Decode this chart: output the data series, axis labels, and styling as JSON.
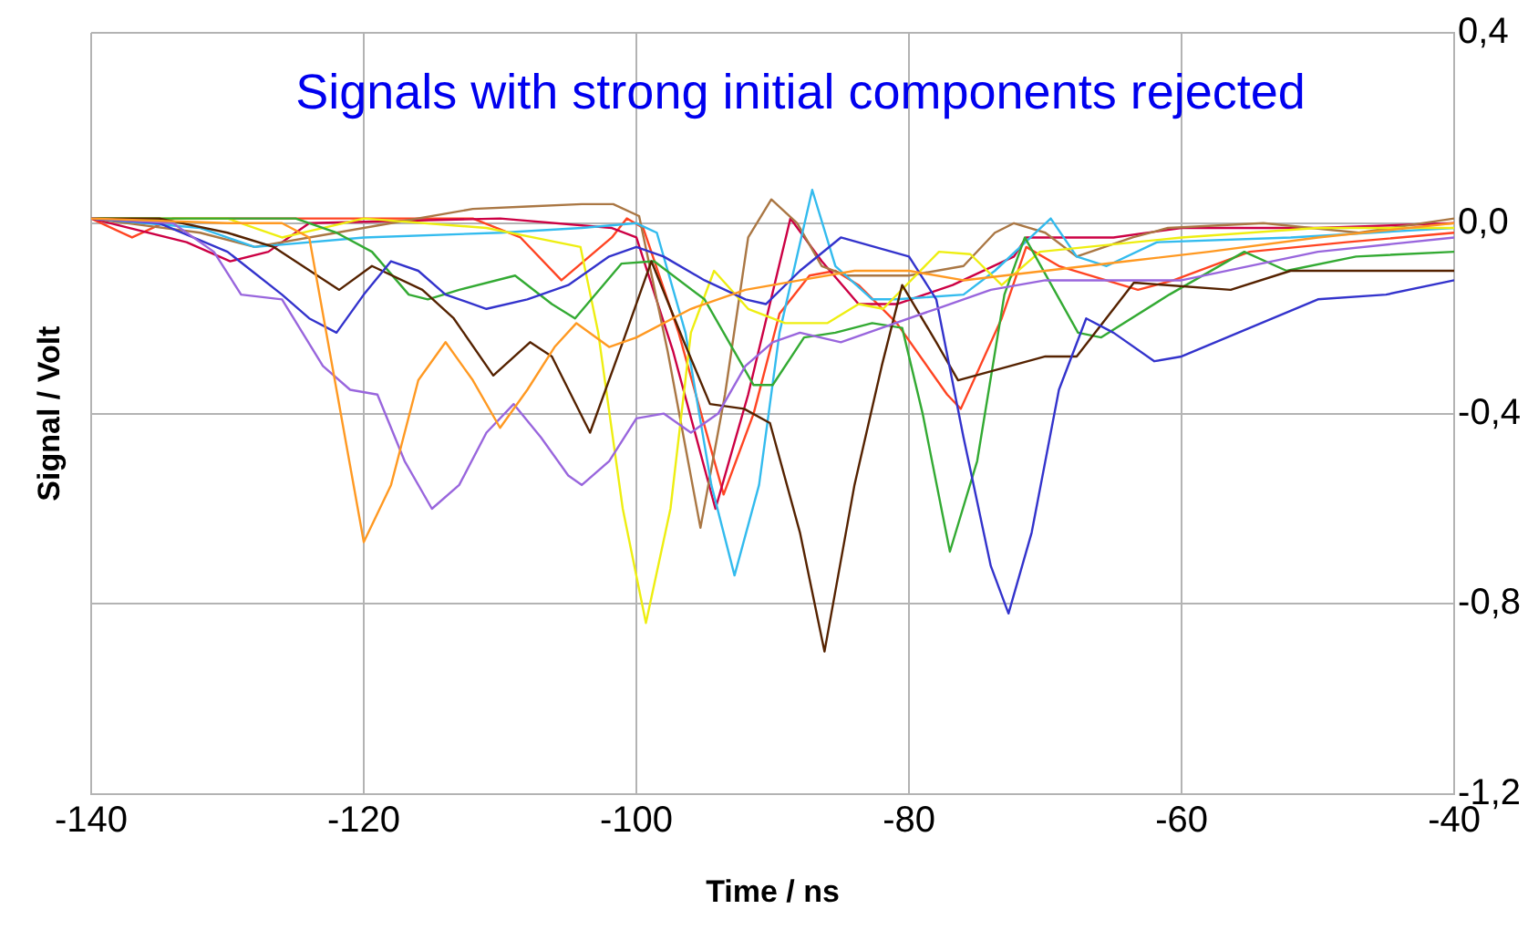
{
  "chart_data": {
    "type": "line",
    "title": "Signals with strong initial components rejected",
    "xlabel": "Time / ns",
    "ylabel": "Signal / Volt",
    "xlim": [
      -140,
      -40
    ],
    "xticks": [
      -140,
      -120,
      -100,
      -80,
      -60,
      -40
    ],
    "ylim": [
      -1.2,
      0.4
    ],
    "yticks": [
      {
        "value": 0.4,
        "label": "0,4"
      },
      {
        "value": 0,
        "label": "0,0"
      },
      {
        "value": -0.4,
        "label": "-0,4"
      },
      {
        "value": -0.8,
        "label": "-0,8"
      },
      {
        "value": -1.2,
        "label": "-1,2"
      }
    ],
    "grid": true,
    "legend": false,
    "marker": "none",
    "line_style": "solid",
    "series": [
      {
        "color": "#ff9922",
        "x": [
          -140,
          -130,
          -126,
          -124,
          -122,
          -120,
          -118,
          -116,
          -114,
          -112,
          -110,
          -108,
          -106,
          -104.4,
          -102,
          -100,
          -96,
          -92,
          -88,
          -84,
          -80,
          -76,
          -70,
          -64,
          -58,
          -50,
          -40
        ],
        "values": [
          0.01,
          0,
          0,
          -0.03,
          -0.35,
          -0.67,
          -0.55,
          -0.33,
          -0.25,
          -0.33,
          -0.43,
          -0.35,
          -0.26,
          -0.21,
          -0.26,
          -0.24,
          -0.18,
          -0.14,
          -0.12,
          -0.1,
          -0.1,
          -0.12,
          -0.1,
          -0.08,
          -0.06,
          -0.03,
          0
        ]
      },
      {
        "color": "#9966dd",
        "x": [
          -140,
          -134,
          -131,
          -129,
          -126,
          -123,
          -121,
          -119,
          -117,
          -115,
          -113,
          -111,
          -109,
          -107,
          -105,
          -104,
          -102,
          -100,
          -98,
          -96,
          -94,
          -92,
          -90,
          -88,
          -85,
          -82,
          -78,
          -74,
          -70,
          -60,
          -50,
          -40
        ],
        "values": [
          0.01,
          0,
          -0.06,
          -0.15,
          -0.16,
          -0.3,
          -0.35,
          -0.36,
          -0.5,
          -0.6,
          -0.55,
          -0.44,
          -0.38,
          -0.45,
          -0.53,
          -0.55,
          -0.5,
          -0.41,
          -0.4,
          -0.44,
          -0.4,
          -0.3,
          -0.25,
          -0.23,
          -0.25,
          -0.22,
          -0.18,
          -0.14,
          -0.12,
          -0.12,
          -0.06,
          -0.03
        ]
      },
      {
        "color": "#3333cc",
        "x": [
          -140,
          -135,
          -130,
          -126,
          -124,
          -122,
          -120,
          -118,
          -116,
          -114,
          -111,
          -108,
          -105,
          -102,
          -100,
          -98,
          -95,
          -92,
          -90.5,
          -88,
          -85,
          -80,
          -78,
          -76,
          -74,
          -72.7,
          -71,
          -69,
          -67,
          -65,
          -62,
          -60,
          -55,
          -50,
          -45,
          -40
        ],
        "values": [
          0.01,
          0,
          -0.06,
          -0.15,
          -0.2,
          -0.23,
          -0.15,
          -0.08,
          -0.1,
          -0.15,
          -0.18,
          -0.16,
          -0.13,
          -0.07,
          -0.05,
          -0.07,
          -0.12,
          -0.16,
          -0.17,
          -0.1,
          -0.03,
          -0.07,
          -0.16,
          -0.45,
          -0.72,
          -0.82,
          -0.65,
          -0.35,
          -0.2,
          -0.23,
          -0.29,
          -0.28,
          -0.22,
          -0.16,
          -0.15,
          -0.12
        ]
      },
      {
        "color": "#552200",
        "x": [
          -140,
          -135,
          -130,
          -126.6,
          -121.8,
          -119.4,
          -115.7,
          -113.4,
          -110.5,
          -107.8,
          -106.2,
          -103.4,
          -101,
          -98.9,
          -96.5,
          -94.6,
          -92.1,
          -90.2,
          -88,
          -86.2,
          -84,
          -82,
          -80.5,
          -78,
          -76.4,
          -70,
          -67.7,
          -63.5,
          -56.4,
          -52,
          -47,
          -40
        ],
        "values": [
          0.01,
          0.01,
          -0.02,
          -0.05,
          -0.14,
          -0.09,
          -0.14,
          -0.2,
          -0.32,
          -0.25,
          -0.28,
          -0.44,
          -0.25,
          -0.08,
          -0.25,
          -0.38,
          -0.39,
          -0.42,
          -0.65,
          -0.9,
          -0.55,
          -0.3,
          -0.13,
          -0.25,
          -0.33,
          -0.28,
          -0.28,
          -0.125,
          -0.14,
          -0.1,
          -0.1,
          -0.1
        ]
      },
      {
        "color": "#33aa33",
        "x": [
          -140,
          -130,
          -125,
          -122,
          -119.4,
          -116.7,
          -115.3,
          -113,
          -108.9,
          -106.2,
          -104.5,
          -101.1,
          -98.7,
          -95,
          -91.4,
          -90,
          -87.7,
          -85.4,
          -82.7,
          -80.5,
          -79,
          -77,
          -75,
          -73,
          -71.5,
          -67.6,
          -65.9,
          -60.9,
          -55.4,
          -52.3,
          -47.2,
          -40
        ],
        "values": [
          0.01,
          0.01,
          0.01,
          -0.02,
          -0.06,
          -0.15,
          -0.16,
          -0.14,
          -0.11,
          -0.17,
          -0.2,
          -0.085,
          -0.08,
          -0.16,
          -0.34,
          -0.34,
          -0.24,
          -0.23,
          -0.21,
          -0.22,
          -0.4,
          -0.69,
          -0.5,
          -0.15,
          -0.03,
          -0.23,
          -0.24,
          -0.15,
          -0.06,
          -0.1,
          -0.07,
          -0.06
        ]
      },
      {
        "color": "#eeee11",
        "x": [
          -140,
          -130,
          -126,
          -120,
          -111,
          -104.1,
          -102.8,
          -101,
          -99.3,
          -97.5,
          -96,
          -94.3,
          -91.8,
          -89.1,
          -86,
          -83.7,
          -81.9,
          -77.8,
          -75.5,
          -73.2,
          -70.4,
          -60,
          -50,
          -40
        ],
        "values": [
          0.01,
          0.01,
          -0.03,
          0.01,
          -0.01,
          -0.05,
          -0.23,
          -0.6,
          -0.84,
          -0.6,
          -0.23,
          -0.1,
          -0.18,
          -0.21,
          -0.21,
          -0.17,
          -0.18,
          -0.06,
          -0.065,
          -0.13,
          -0.06,
          -0.03,
          -0.01,
          -0.01
        ]
      },
      {
        "color": "#33bbee",
        "x": [
          -140,
          -132,
          -128,
          -120,
          -110,
          -104,
          -100,
          -98.5,
          -96.4,
          -94.5,
          -92.8,
          -91,
          -89.5,
          -87.1,
          -85.4,
          -82.7,
          -80.9,
          -76,
          -73.7,
          -69.6,
          -67.7,
          -65.5,
          -61.8,
          -52,
          -40
        ],
        "values": [
          0.01,
          -0.01,
          -0.05,
          -0.03,
          -0.02,
          -0.01,
          0,
          -0.02,
          -0.23,
          -0.55,
          -0.74,
          -0.55,
          -0.23,
          0.07,
          -0.09,
          -0.16,
          -0.16,
          -0.15,
          -0.1,
          0.01,
          -0.07,
          -0.09,
          -0.04,
          -0.03,
          -0.01
        ]
      },
      {
        "color": "#aa7744",
        "x": [
          -140,
          -132,
          -128,
          -122,
          -118,
          -112,
          -108,
          -104,
          -101.7,
          -99.8,
          -97.7,
          -95.3,
          -93.5,
          -91.8,
          -90.1,
          -88.2,
          -86.4,
          -84.6,
          -80,
          -76,
          -73.7,
          -72.3,
          -70,
          -67.7,
          -63.6,
          -61,
          -54,
          -47,
          -40
        ],
        "values": [
          0.01,
          -0.02,
          -0.05,
          -0.02,
          0,
          0.03,
          0.035,
          0.04,
          0.04,
          0.015,
          -0.27,
          -0.64,
          -0.36,
          -0.03,
          0.05,
          0,
          -0.09,
          -0.11,
          -0.11,
          -0.09,
          -0.02,
          0,
          -0.02,
          -0.07,
          -0.03,
          -0.01,
          0,
          -0.02,
          0.01
        ]
      },
      {
        "color": "#cc0044",
        "x": [
          -140,
          -133,
          -129.8,
          -127,
          -124,
          -110,
          -101.8,
          -100,
          -97.3,
          -94.2,
          -91.8,
          -88.7,
          -86.4,
          -83.7,
          -80.9,
          -76.8,
          -72.3,
          -71.4,
          -65,
          -60,
          -50,
          -40
        ],
        "values": [
          0.01,
          -0.04,
          -0.08,
          -0.06,
          0,
          0.01,
          -0.01,
          -0.03,
          -0.27,
          -0.6,
          -0.36,
          0.01,
          -0.08,
          -0.17,
          -0.17,
          -0.13,
          -0.07,
          -0.03,
          -0.03,
          -0.01,
          -0.01,
          0
        ]
      },
      {
        "color": "#ff4422",
        "x": [
          -140,
          -137,
          -134,
          -125,
          -112,
          -108.5,
          -105.5,
          -101.8,
          -100.7,
          -99.5,
          -96.9,
          -93.6,
          -91.4,
          -89.5,
          -87.3,
          -85.4,
          -83.7,
          -80.9,
          -77.2,
          -76.2,
          -73.2,
          -71.4,
          -69,
          -63.2,
          -60.6,
          -55,
          -47.9,
          -40
        ],
        "values": [
          0.01,
          -0.03,
          0.01,
          0.01,
          0.01,
          -0.03,
          -0.12,
          -0.03,
          0.01,
          -0.01,
          -0.23,
          -0.57,
          -0.4,
          -0.19,
          -0.11,
          -0.1,
          -0.13,
          -0.21,
          -0.36,
          -0.39,
          -0.2,
          -0.05,
          -0.09,
          -0.14,
          -0.12,
          -0.06,
          -0.04,
          -0.02
        ]
      }
    ]
  }
}
